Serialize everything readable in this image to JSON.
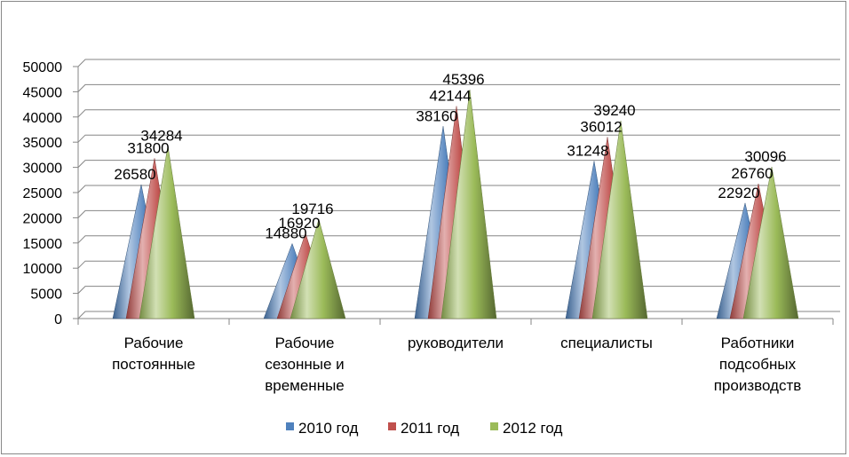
{
  "chart_data": {
    "type": "bar",
    "bar_shape": "cone",
    "title": "",
    "xlabel": "",
    "ylabel": "",
    "ylim": [
      0,
      50000
    ],
    "yticks": [
      0,
      5000,
      10000,
      15000,
      20000,
      25000,
      30000,
      35000,
      40000,
      45000,
      50000
    ],
    "grid": true,
    "legend_position": "bottom",
    "categories": [
      [
        "Рабочие",
        "постоянные"
      ],
      [
        "Рабочие",
        "сезонные и",
        "временные"
      ],
      [
        "руководители"
      ],
      [
        "специалисты"
      ],
      [
        "Работники",
        "подсобных",
        "производств"
      ]
    ],
    "series": [
      {
        "name": "2010 год",
        "color": "#4f81bd",
        "values": [
          26580,
          14880,
          38160,
          31248,
          22920
        ]
      },
      {
        "name": "2011 год",
        "color": "#c0504d",
        "values": [
          31800,
          16920,
          42144,
          36012,
          26760
        ]
      },
      {
        "name": "2012 год",
        "color": "#9bbb59",
        "values": [
          34284,
          19716,
          45396,
          39240,
          30096
        ]
      }
    ]
  }
}
